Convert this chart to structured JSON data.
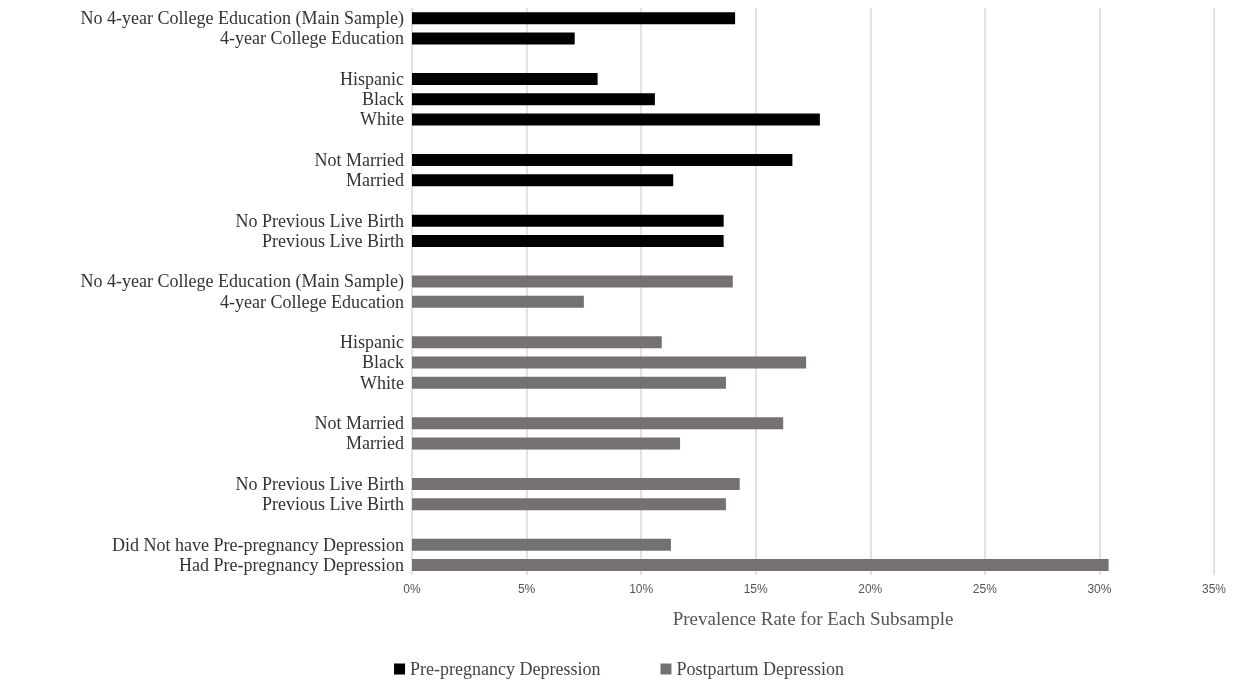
{
  "chart_data": {
    "type": "bar",
    "orientation": "horizontal",
    "xlabel": "Prevalence Rate for Each Subsample",
    "categories": [
      "No 4-year College Education (Main Sample)",
      "4-year College Education",
      null,
      "Hispanic",
      "Black",
      "White",
      null,
      "Not Married",
      "Married",
      null,
      "No Previous Live Birth",
      "Previous Live Birth",
      null,
      "No 4-year College Education (Main Sample)",
      "4-year College Education",
      null,
      "Hispanic",
      "Black",
      "White",
      null,
      "Not Married",
      "Married",
      null,
      "No Previous Live Birth",
      "Previous Live Birth",
      null,
      "Did Not have Pre-pregnancy Depression",
      "Had Pre-pregnancy Depression"
    ],
    "series": [
      {
        "name": "Pre-pregnancy Depression",
        "color": "#000000",
        "values": [
          14.1,
          7.1,
          null,
          8.1,
          10.6,
          17.8,
          null,
          16.6,
          11.4,
          null,
          13.6,
          13.6,
          null,
          null,
          null,
          null,
          null,
          null,
          null,
          null,
          null,
          null,
          null,
          null,
          null,
          null,
          null,
          null
        ]
      },
      {
        "name": "Postpartum Depression",
        "color": "#767171",
        "values": [
          null,
          null,
          null,
          null,
          null,
          null,
          null,
          null,
          null,
          null,
          null,
          null,
          null,
          14.0,
          7.5,
          null,
          10.9,
          17.2,
          13.7,
          null,
          16.2,
          11.7,
          null,
          14.3,
          13.7,
          null,
          11.3,
          30.4
        ]
      }
    ],
    "xlim": [
      0,
      35
    ],
    "xticks": [
      {
        "value": 0,
        "label": "0%"
      },
      {
        "value": 5,
        "label": "5%"
      },
      {
        "value": 10,
        "label": "10%"
      },
      {
        "value": 15,
        "label": "15%"
      },
      {
        "value": 20,
        "label": "20%"
      },
      {
        "value": 25,
        "label": "25%"
      },
      {
        "value": 30,
        "label": "30%"
      },
      {
        "value": 35,
        "label": "35%"
      }
    ],
    "grid": "x",
    "legend": "bottom"
  }
}
